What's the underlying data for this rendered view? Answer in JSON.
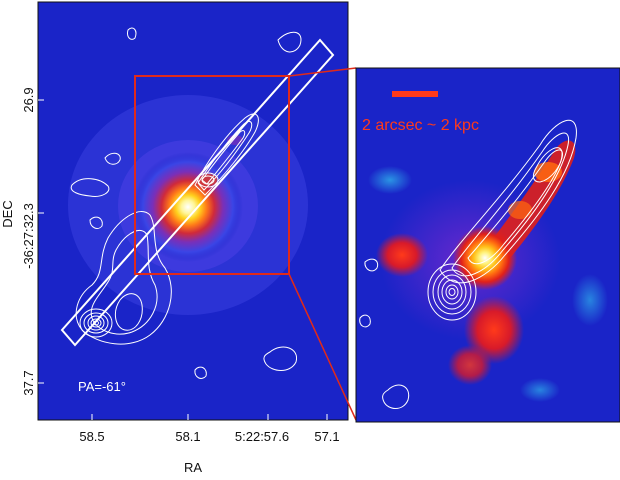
{
  "left_panel": {
    "ylabel": "DEC",
    "xlabel": "RA",
    "y_ticks": [
      "26.9",
      "-36:27:32.3",
      "37.7"
    ],
    "x_ticks": [
      "58.5",
      "58.1",
      "5:22:57.6",
      "57.1"
    ],
    "annotation": "PA=-61°"
  },
  "right_panel": {
    "scale_label": "2 arcsec ~ 2 kpc"
  },
  "colors": {
    "map_background": "#1a24c8",
    "zoom_box": "#e02a1a",
    "contours": "#ffffff",
    "scale_bar": "#ff3a1a",
    "scale_text": "#ff3a1a"
  }
}
